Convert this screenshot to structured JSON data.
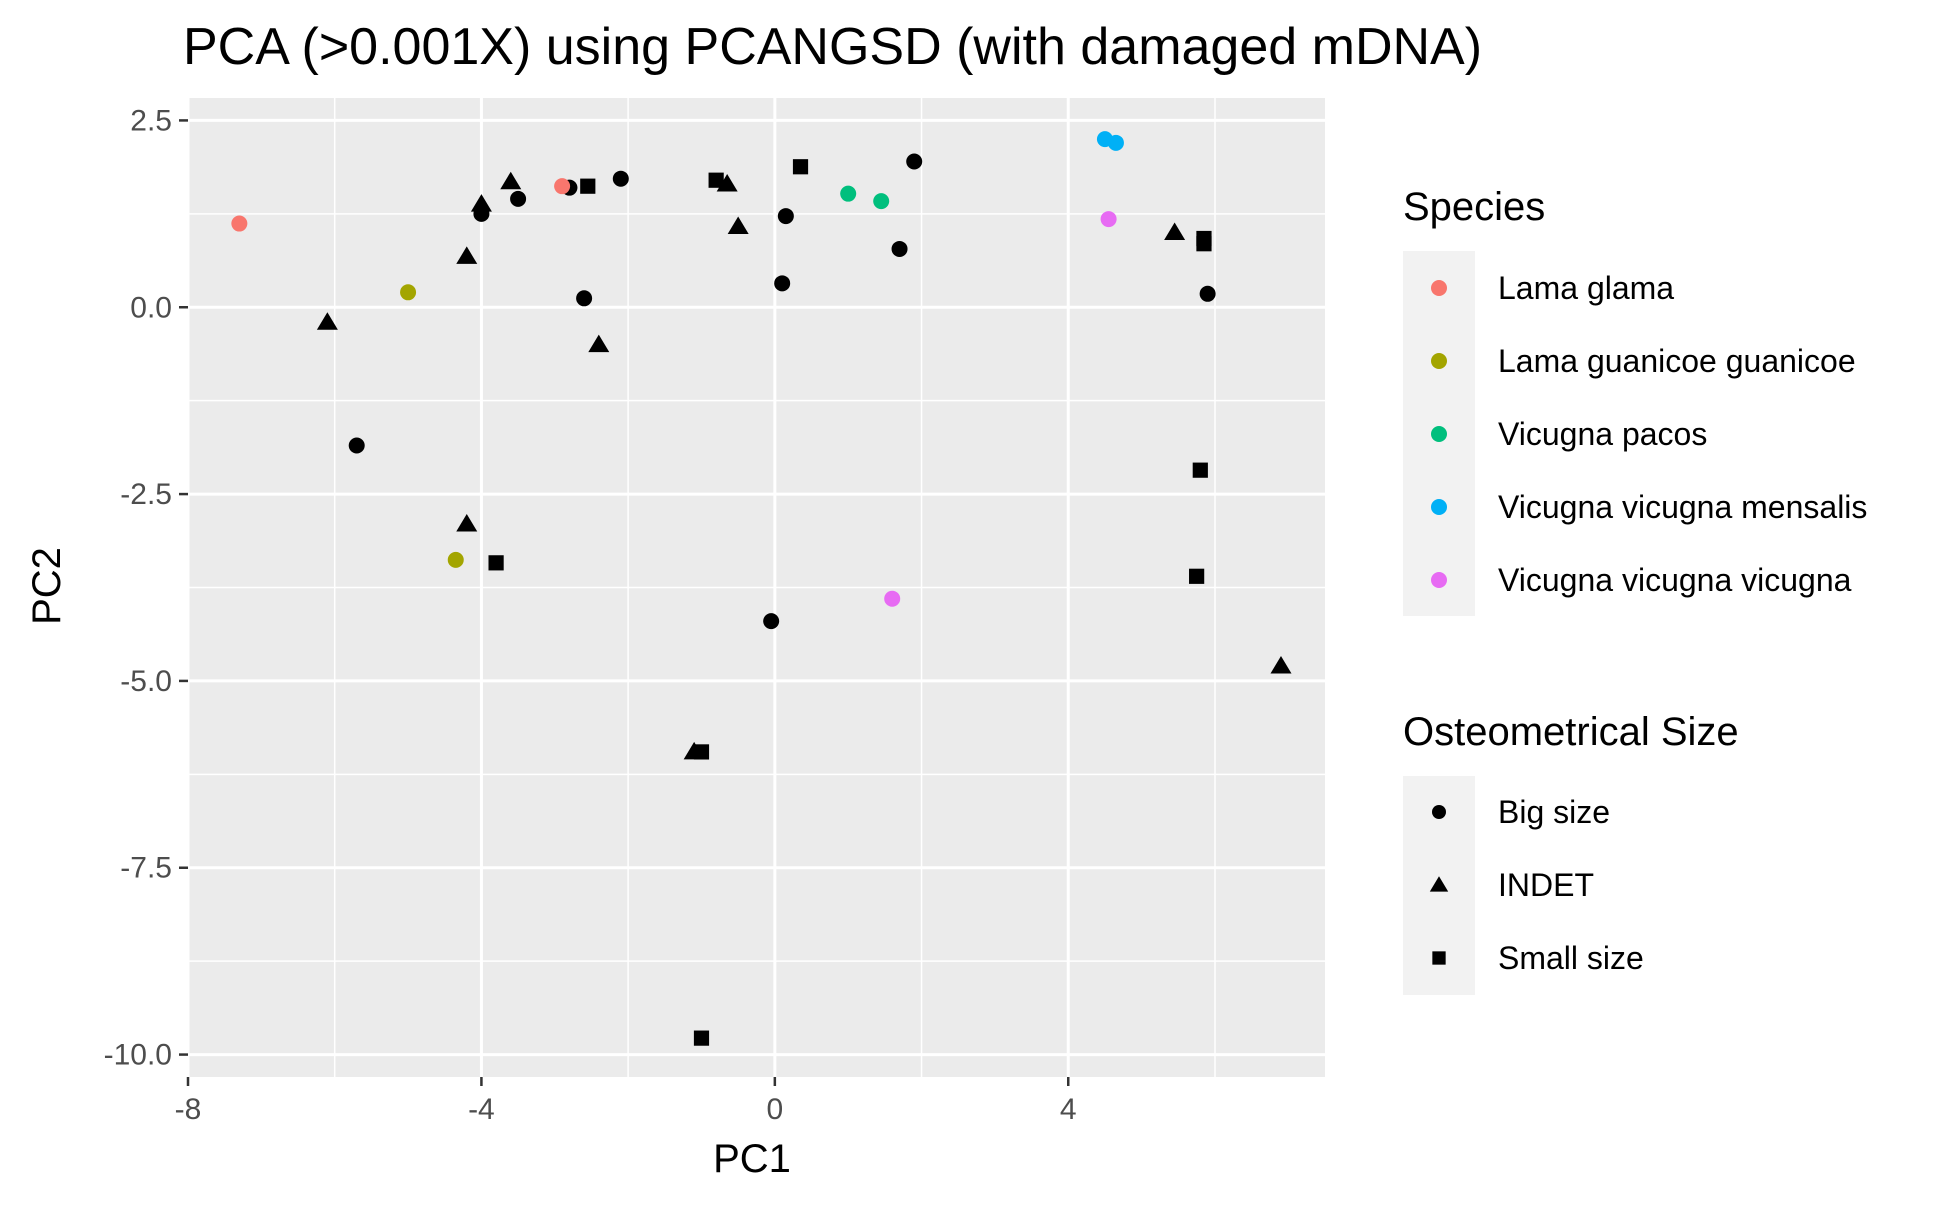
{
  "chart_data": {
    "type": "scatter",
    "title": "PCA (>0.001X) using PCANGSD (with damaged mDNA)",
    "xlabel": "PC1",
    "ylabel": "PC2",
    "xlim": [
      -8,
      7.5
    ],
    "ylim": [
      -10.3,
      2.8
    ],
    "xticks": [
      -8,
      -4,
      0,
      4
    ],
    "xtick_labels": [
      "-8",
      "-4",
      "0",
      "4"
    ],
    "yticks": [
      2.5,
      0.0,
      -2.5,
      -5.0,
      -7.5,
      -10.0
    ],
    "ytick_labels": [
      "2.5",
      "0.0",
      "-2.5",
      "-5.0",
      "-7.5",
      "-10.0"
    ],
    "grid": true,
    "background": "#ebebeb",
    "species_legend": {
      "title": "Species",
      "entries": [
        {
          "name": "Lama glama",
          "color": "#F8766D"
        },
        {
          "name": "Lama guanicoe guanicoe",
          "color": "#A3A500"
        },
        {
          "name": "Vicugna pacos",
          "color": "#00BF7D"
        },
        {
          "name": "Vicugna vicugna mensalis",
          "color": "#00B0F6"
        },
        {
          "name": "Vicugna vicugna vicugna",
          "color": "#E76BF3"
        }
      ]
    },
    "size_legend": {
      "title": "Osteometrical Size",
      "entries": [
        {
          "name": "Big size",
          "shape": "circle"
        },
        {
          "name": "INDET",
          "shape": "triangle"
        },
        {
          "name": "Small size",
          "shape": "square"
        }
      ]
    },
    "series": [
      {
        "name": "Big size",
        "shape": "circle",
        "color": "#000000",
        "points": [
          {
            "x": -5.7,
            "y": -1.85
          },
          {
            "x": -4.0,
            "y": 1.25
          },
          {
            "x": -3.5,
            "y": 1.45
          },
          {
            "x": -2.8,
            "y": 1.6
          },
          {
            "x": -2.6,
            "y": 0.12
          },
          {
            "x": -2.1,
            "y": 1.72
          },
          {
            "x": 0.1,
            "y": 0.32
          },
          {
            "x": 0.15,
            "y": 1.22
          },
          {
            "x": -0.05,
            "y": -4.2
          },
          {
            "x": 1.7,
            "y": 0.78
          },
          {
            "x": 1.9,
            "y": 1.95
          },
          {
            "x": 5.9,
            "y": 0.18
          }
        ]
      },
      {
        "name": "INDET",
        "shape": "triangle",
        "color": "#000000",
        "points": [
          {
            "x": -6.1,
            "y": -0.2
          },
          {
            "x": -4.2,
            "y": 0.68
          },
          {
            "x": -4.0,
            "y": 1.38
          },
          {
            "x": -3.6,
            "y": 1.68
          },
          {
            "x": -2.4,
            "y": -0.5
          },
          {
            "x": -4.2,
            "y": -2.9
          },
          {
            "x": -0.5,
            "y": 1.08
          },
          {
            "x": -0.65,
            "y": 1.65
          },
          {
            "x": -1.1,
            "y": -5.95
          },
          {
            "x": 5.45,
            "y": 1.0
          },
          {
            "x": 6.9,
            "y": -4.8
          }
        ]
      },
      {
        "name": "Small size",
        "shape": "square",
        "color": "#000000",
        "points": [
          {
            "x": -3.8,
            "y": -3.42
          },
          {
            "x": -2.55,
            "y": 1.62
          },
          {
            "x": -0.8,
            "y": 1.7
          },
          {
            "x": 0.35,
            "y": 1.88
          },
          {
            "x": -1.0,
            "y": -5.95
          },
          {
            "x": -1.0,
            "y": -9.78
          },
          {
            "x": 5.85,
            "y": 0.92
          },
          {
            "x": 5.85,
            "y": 0.85
          },
          {
            "x": 5.8,
            "y": -2.18
          },
          {
            "x": 5.75,
            "y": -3.6
          }
        ]
      },
      {
        "name": "Lama glama",
        "shape": "circle",
        "color": "#F8766D",
        "points": [
          {
            "x": -7.3,
            "y": 1.12
          },
          {
            "x": -2.9,
            "y": 1.62
          }
        ]
      },
      {
        "name": "Lama guanicoe guanicoe",
        "shape": "circle",
        "color": "#A3A500",
        "points": [
          {
            "x": -5.0,
            "y": 0.2
          },
          {
            "x": -4.35,
            "y": -3.38
          }
        ]
      },
      {
        "name": "Vicugna pacos",
        "shape": "circle",
        "color": "#00BF7D",
        "points": [
          {
            "x": 1.0,
            "y": 1.52
          },
          {
            "x": 1.45,
            "y": 1.42
          }
        ]
      },
      {
        "name": "Vicugna vicugna mensalis",
        "shape": "circle",
        "color": "#00B0F6",
        "points": [
          {
            "x": 4.5,
            "y": 2.25
          },
          {
            "x": 4.65,
            "y": 2.2
          }
        ]
      },
      {
        "name": "Vicugna vicugna vicugna",
        "shape": "circle",
        "color": "#E76BF3",
        "points": [
          {
            "x": 4.55,
            "y": 1.18
          },
          {
            "x": 1.6,
            "y": -3.9
          }
        ]
      }
    ]
  }
}
